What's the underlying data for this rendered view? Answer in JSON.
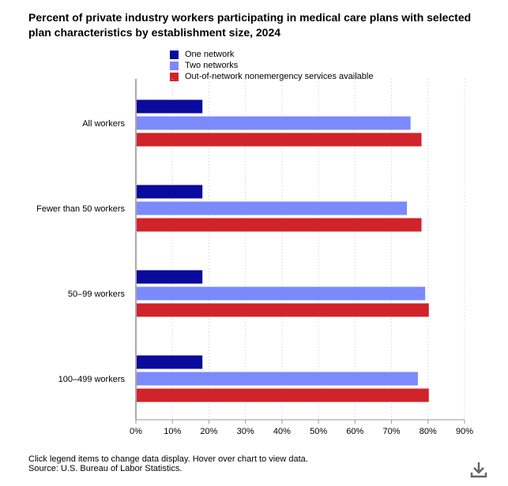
{
  "title": "Percent of private industry workers participating in medical care plans with selected plan characteristics by establishment size, 2024",
  "legend": [
    {
      "label": "One network",
      "color": "#0a0a9c"
    },
    {
      "label": "Two networks",
      "color": "#7b8afc"
    },
    {
      "label": "Out-of-network nonemergency services available",
      "color": "#d1232a"
    }
  ],
  "footnote": {
    "instructions": "Click legend items to change data display. Hover over chart to view data.",
    "source": "Source: U.S. Bureau of Labor Statistics."
  },
  "chart_data": {
    "type": "bar",
    "orientation": "horizontal",
    "title": "Percent of private industry workers participating in medical care plans with selected plan characteristics by establishment size, 2024",
    "categories": [
      "All workers",
      "Fewer than 50 workers",
      "50–99 workers",
      "100–499 workers"
    ],
    "series": [
      {
        "name": "One network",
        "color": "#0a0a9c",
        "values": [
          18,
          18,
          18,
          18
        ]
      },
      {
        "name": "Two networks",
        "color": "#7b8afc",
        "values": [
          75,
          74,
          79,
          77
        ]
      },
      {
        "name": "Out-of-network nonemergency services available",
        "color": "#d1232a",
        "values": [
          78,
          78,
          80,
          80
        ]
      }
    ],
    "xlim": [
      0,
      90
    ],
    "xticks": [
      "0%",
      "10%",
      "20%",
      "30%",
      "40%",
      "50%",
      "60%",
      "70%",
      "80%",
      "90%"
    ],
    "xlabel": "",
    "ylabel": "",
    "grid": true
  }
}
